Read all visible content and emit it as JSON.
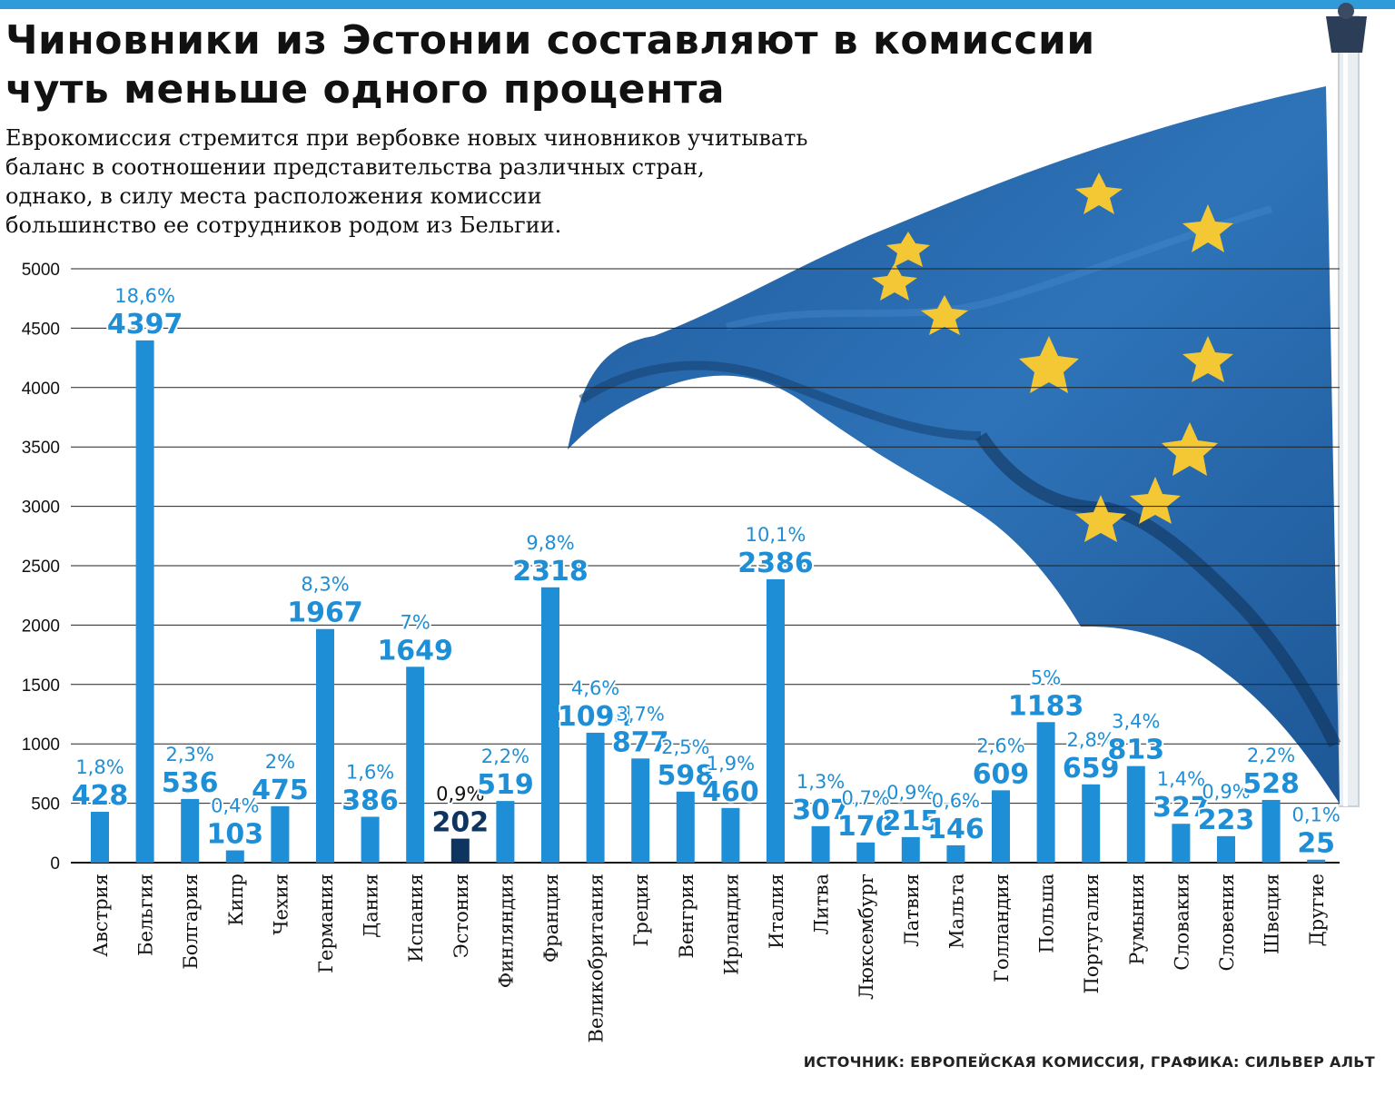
{
  "header": {
    "title_line1": "Чиновники из Эстонии составляют в комиссии",
    "title_line2": "чуть меньше одного процента",
    "subtitle_lines": [
      "Еврокомиссия стремится при вербовке новых чиновников учитывать",
      "баланс в соотношении представительства различных стран,",
      "однако, в силу места расположения комиссии",
      "большинство ее сотрудников родом из Бельгии."
    ]
  },
  "source": "ИСТОЧНИК: ЕВРОПЕЙСКАЯ КОМИССИЯ, ГРАФИКА: СИЛЬВЕР АЛЬТ",
  "colors": {
    "bar": "#1e8fd6",
    "highlight": "#0d3560",
    "label": "#1e8fd6",
    "accent_bar": "#2f9bd8",
    "flag_blue": "#2563a6",
    "star": "#f4c735"
  },
  "decoration": {
    "flag": "eu-flag-icon"
  },
  "chart_data": {
    "type": "bar",
    "categories": [
      "Австрия",
      "Бельгия",
      "Болгария",
      "Кипр",
      "Чехия",
      "Германия",
      "Дания",
      "Испания",
      "Эстония",
      "Финляндия",
      "Франция",
      "Великобритания",
      "Греция",
      "Венгрия",
      "Ирландия",
      "Италия",
      "Литва",
      "Люксембург",
      "Латвия",
      "Мальта",
      "Голландия",
      "Польша",
      "Португалия",
      "Румыния",
      "Словакия",
      "Словения",
      "Швеция",
      "Другие"
    ],
    "values": [
      428,
      4397,
      536,
      103,
      475,
      1967,
      386,
      1649,
      202,
      519,
      2318,
      1094,
      877,
      598,
      460,
      2386,
      307,
      170,
      215,
      146,
      609,
      1183,
      659,
      813,
      327,
      223,
      528,
      25
    ],
    "percent_labels": [
      "1,8%",
      "18,6%",
      "2,3%",
      "0,4%",
      "2%",
      "8,3%",
      "1,6%",
      "7%",
      "0,9%",
      "2,2%",
      "9,8%",
      "4,6%",
      "3,7%",
      "2,5%",
      "1,9%",
      "10,1%",
      "1,3%",
      "0,7%",
      "0,9%",
      "0,6%",
      "2,6%",
      "5%",
      "2,8%",
      "3,4%",
      "1,4%",
      "0,9%",
      "2,2%",
      "0,1%"
    ],
    "highlight_category": "Эстония",
    "yticks": [
      0,
      500,
      1000,
      1500,
      2000,
      2500,
      3000,
      3500,
      4000,
      4500,
      5000
    ],
    "ylim": [
      0,
      5000
    ],
    "xlabel": "",
    "ylabel": "",
    "grid": true,
    "legend": "none"
  }
}
